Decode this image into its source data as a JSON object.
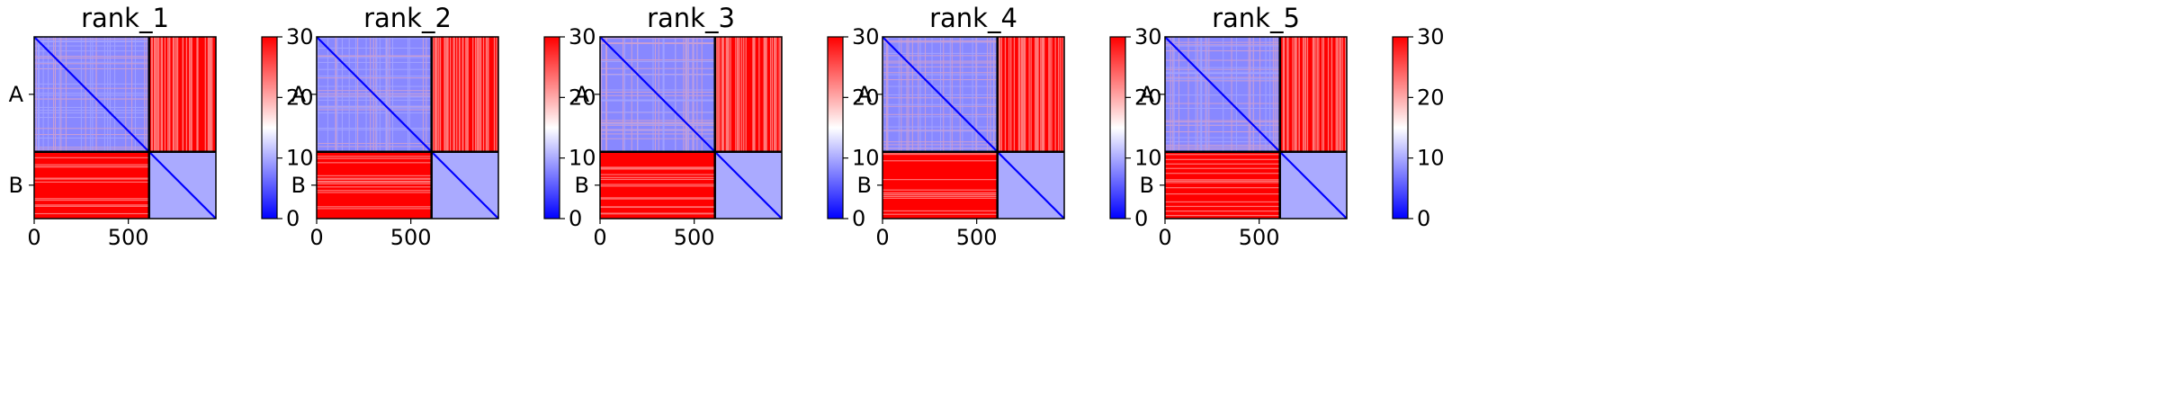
{
  "chart_data": [
    {
      "type": "heatmap",
      "title": "rank_1",
      "x_ticks": [
        "0",
        "500"
      ],
      "y_ticks": [
        "A",
        "B"
      ],
      "chains": [
        {
          "label": "A",
          "length": 610
        },
        {
          "label": "B",
          "length": 355
        }
      ],
      "colorbar": {
        "min": 0,
        "max": 30,
        "ticks": [
          "0",
          "10",
          "20",
          "30"
        ],
        "colormap": "bwr"
      },
      "values": {
        "intra_A": 8,
        "intra_B": 10,
        "inter_AB": 30,
        "inter_BA": 30,
        "diagonal": 0
      }
    },
    {
      "type": "heatmap",
      "title": "rank_2",
      "x_ticks": [
        "0",
        "500"
      ],
      "y_ticks": [
        "A",
        "B"
      ],
      "chains": [
        {
          "label": "A",
          "length": 610
        },
        {
          "label": "B",
          "length": 355
        }
      ],
      "colorbar": {
        "min": 0,
        "max": 30,
        "ticks": [
          "0",
          "10",
          "20",
          "30"
        ],
        "colormap": "bwr"
      },
      "values": {
        "intra_A": 8,
        "intra_B": 10,
        "inter_AB": 30,
        "inter_BA": 30,
        "diagonal": 0
      }
    },
    {
      "type": "heatmap",
      "title": "rank_3",
      "x_ticks": [
        "0",
        "500"
      ],
      "y_ticks": [
        "A",
        "B"
      ],
      "chains": [
        {
          "label": "A",
          "length": 610
        },
        {
          "label": "B",
          "length": 355
        }
      ],
      "colorbar": {
        "min": 0,
        "max": 30,
        "ticks": [
          "0",
          "10",
          "20",
          "30"
        ],
        "colormap": "bwr"
      },
      "values": {
        "intra_A": 8,
        "intra_B": 10,
        "inter_AB": 30,
        "inter_BA": 30,
        "diagonal": 0
      }
    },
    {
      "type": "heatmap",
      "title": "rank_4",
      "x_ticks": [
        "0",
        "500"
      ],
      "y_ticks": [
        "A",
        "B"
      ],
      "chains": [
        {
          "label": "A",
          "length": 610
        },
        {
          "label": "B",
          "length": 355
        }
      ],
      "colorbar": {
        "min": 0,
        "max": 30,
        "ticks": [
          "0",
          "10",
          "20",
          "30"
        ],
        "colormap": "bwr"
      },
      "values": {
        "intra_A": 8,
        "intra_B": 10,
        "inter_AB": 30,
        "inter_BA": 30,
        "diagonal": 0
      }
    },
    {
      "type": "heatmap",
      "title": "rank_5",
      "x_ticks": [
        "0",
        "500"
      ],
      "y_ticks": [
        "A",
        "B"
      ],
      "chains": [
        {
          "label": "A",
          "length": 610
        },
        {
          "label": "B",
          "length": 355
        }
      ],
      "colorbar": {
        "min": 0,
        "max": 30,
        "ticks": [
          "0",
          "10",
          "20",
          "30"
        ],
        "colormap": "bwr"
      },
      "values": {
        "intra_A": 8,
        "intra_B": 10,
        "inter_AB": 30,
        "inter_BA": 30,
        "diagonal": 0
      }
    }
  ],
  "colors": {
    "low": "#0000ff",
    "mid": "#ffffff",
    "high": "#ff0000",
    "frame": "#000000"
  }
}
